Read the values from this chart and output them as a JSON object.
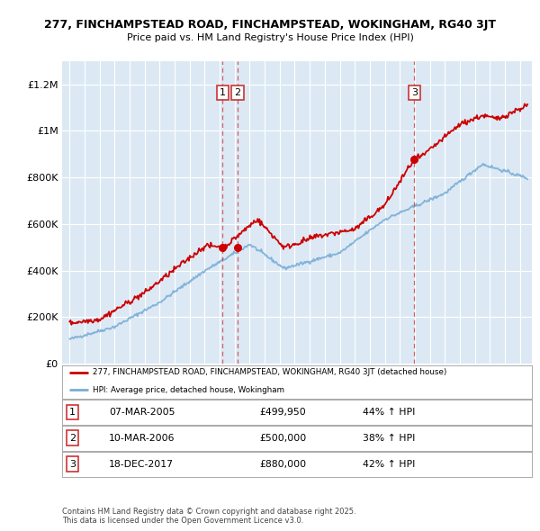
{
  "title_line1": "277, FINCHAMPSTEAD ROAD, FINCHAMPSTEAD, WOKINGHAM, RG40 3JT",
  "title_line2": "Price paid vs. HM Land Registry's House Price Index (HPI)",
  "background_color": "#dce9f5",
  "plot_bg_color": "#dce9f5",
  "red_line_color": "#cc0000",
  "blue_line_color": "#7aadd4",
  "sales": [
    {
      "label": "1",
      "date_num": 2005.18,
      "price": 499950,
      "date_str": "07-MAR-2005",
      "pct": "44%",
      "dir": "↑"
    },
    {
      "label": "2",
      "date_num": 2006.19,
      "price": 500000,
      "date_str": "10-MAR-2006",
      "pct": "38%",
      "dir": "↑"
    },
    {
      "label": "3",
      "date_num": 2017.96,
      "price": 880000,
      "date_str": "18-DEC-2017",
      "pct": "42%",
      "dir": "↑"
    }
  ],
  "legend_red": "277, FINCHAMPSTEAD ROAD, FINCHAMPSTEAD, WOKINGHAM, RG40 3JT (detached house)",
  "legend_blue": "HPI: Average price, detached house, Wokingham",
  "footnote": "Contains HM Land Registry data © Crown copyright and database right 2025.\nThis data is licensed under the Open Government Licence v3.0.",
  "ylim": [
    0,
    1300000
  ],
  "xlim_start": 1994.5,
  "xlim_end": 2025.8,
  "yticks": [
    0,
    200000,
    400000,
    600000,
    800000,
    1000000,
    1200000
  ],
  "ytick_labels": [
    "£0",
    "£200K",
    "£400K",
    "£600K",
    "£800K",
    "£1M",
    "£1.2M"
  ],
  "xticks": [
    1995,
    1996,
    1997,
    1998,
    1999,
    2000,
    2001,
    2002,
    2003,
    2004,
    2005,
    2006,
    2007,
    2008,
    2009,
    2010,
    2011,
    2012,
    2013,
    2014,
    2015,
    2016,
    2017,
    2018,
    2019,
    2020,
    2021,
    2022,
    2023,
    2024,
    2025
  ]
}
